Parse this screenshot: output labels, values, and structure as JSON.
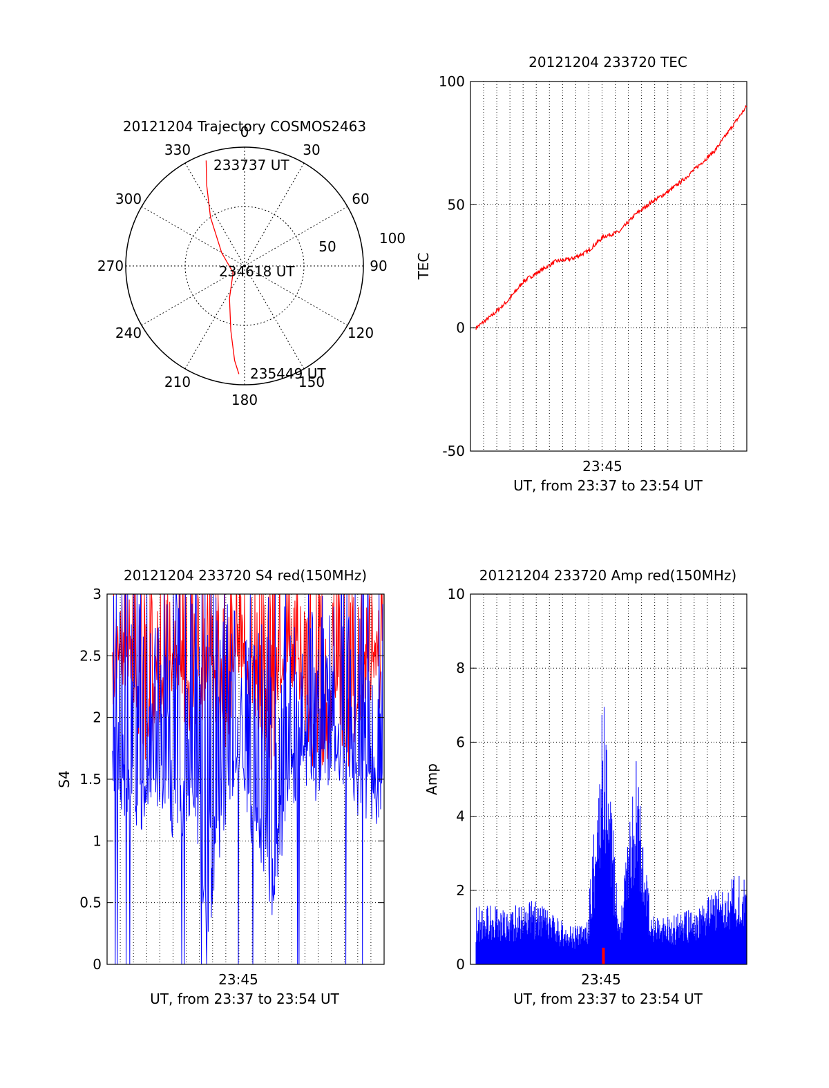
{
  "chart_data": [
    {
      "type": "polar",
      "title": "20121204 Trajectory COSMOS2463",
      "angle_labels": [
        "0",
        "30",
        "60",
        "90",
        "120",
        "150",
        "180",
        "210",
        "240",
        "270",
        "300",
        "330"
      ],
      "radial_labels": [
        "50",
        "100"
      ],
      "annotations": [
        "233737 UT",
        "234618 UT",
        "235449 UT"
      ],
      "series": [
        {
          "color": "#ff0000",
          "points": [
            {
              "azimuth": 340,
              "elevation": 5
            },
            {
              "azimuth": 335,
              "elevation": 22
            },
            {
              "azimuth": 325,
              "elevation": 45
            },
            {
              "azimuth": 300,
              "elevation": 70
            },
            {
              "azimuth": 240,
              "elevation": 80
            },
            {
              "azimuth": 205,
              "elevation": 63
            },
            {
              "azimuth": 192,
              "elevation": 40
            },
            {
              "azimuth": 186,
              "elevation": 18
            },
            {
              "azimuth": 183,
              "elevation": 8
            }
          ]
        }
      ]
    },
    {
      "type": "line",
      "title": "20121204 233720 TEC",
      "ylabel": "TEC",
      "xlabel": "UT, from 23:37 to 23:54 UT",
      "xtick": "23:45",
      "ylim": [
        -50,
        100
      ],
      "yticks": [
        "-50",
        "0",
        "50",
        "100"
      ],
      "grid": true,
      "series": [
        {
          "color": "#ff0000",
          "x": [
            0,
            1,
            2,
            3,
            4,
            5,
            6,
            7,
            8,
            9,
            10,
            11,
            12,
            13,
            14,
            15,
            16,
            17
          ],
          "values": [
            0,
            5,
            11,
            19,
            23,
            27,
            28,
            31,
            37,
            39,
            46,
            51,
            55,
            60,
            66,
            72,
            81,
            90
          ]
        }
      ]
    },
    {
      "type": "line",
      "title": "20121204 233720 S4 red(150MHz)",
      "ylabel": "S4",
      "xlabel": "UT, from 23:37 to 23:54 UT",
      "xtick": "23:45",
      "ylim": [
        0,
        3
      ],
      "yticks": [
        "0",
        "0.5",
        "1",
        "1.5",
        "2",
        "2.5",
        "3"
      ],
      "grid": true,
      "series": [
        {
          "color": "#ff0000",
          "x": [
            0,
            1,
            2,
            3,
            4,
            5,
            6,
            7,
            8,
            9,
            10,
            11,
            12,
            13,
            14,
            15,
            16,
            17
          ],
          "values": [
            2.3,
            2.5,
            1.8,
            2.2,
            2.4,
            2.0,
            2.3,
            1.9,
            2.5,
            2.2,
            1.8,
            2.6,
            2.1,
            1.6,
            2.2,
            1.7,
            2.4,
            2.3
          ]
        },
        {
          "color": "#0000ff",
          "x": [
            0,
            1,
            2,
            3,
            4,
            5,
            6,
            7,
            8,
            9,
            10,
            11,
            12,
            13,
            14,
            15,
            16,
            17
          ],
          "values": [
            1.6,
            1.4,
            1.3,
            1.5,
            1.2,
            1.4,
            0.4,
            1.3,
            1.5,
            1.1,
            0.6,
            1.4,
            1.7,
            1.5,
            1.8,
            1.5,
            1.4,
            1.3
          ]
        }
      ]
    },
    {
      "type": "bar",
      "title": "20121204 233720 Amp red(150MHz)",
      "ylabel": "Amp",
      "xlabel": "UT, from 23:37 to 23:54 UT",
      "xtick": "23:45",
      "ylim": [
        0,
        10
      ],
      "yticks": [
        "0",
        "2",
        "4",
        "6",
        "8",
        "10"
      ],
      "grid": true,
      "series": [
        {
          "color": "#0000ff",
          "x": [
            0,
            1,
            2,
            3,
            4,
            5,
            6,
            7,
            8,
            9,
            10,
            11,
            12,
            13,
            14,
            15,
            16,
            17
          ],
          "values": [
            1.2,
            1.3,
            1.1,
            1.4,
            1.3,
            1.0,
            0.8,
            0.9,
            5.8,
            0.9,
            4.5,
            1.0,
            1.0,
            1.1,
            1.2,
            1.6,
            1.8,
            2.1
          ]
        },
        {
          "color": "#ff0000",
          "x": [
            8
          ],
          "values": [
            0.45
          ]
        }
      ]
    }
  ]
}
